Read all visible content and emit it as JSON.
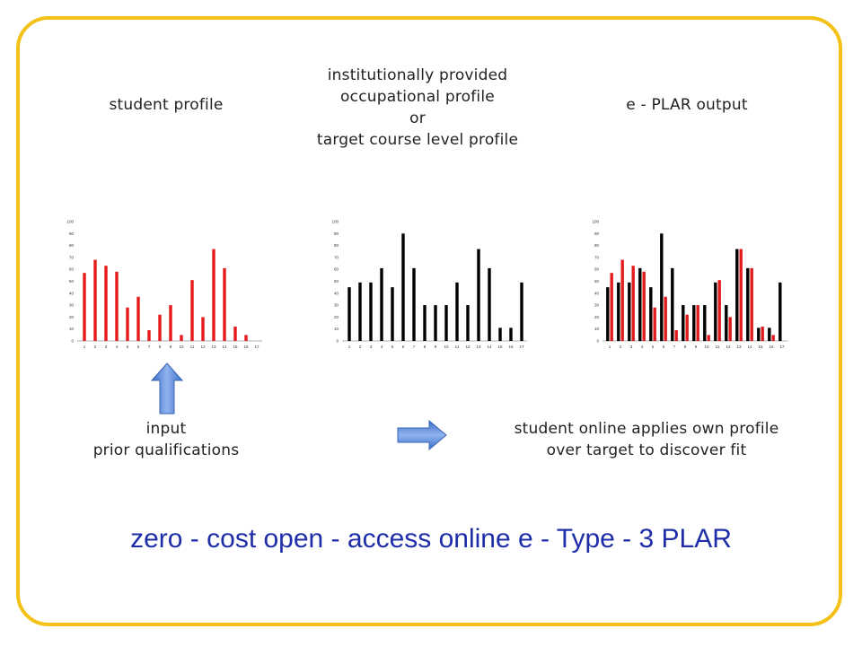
{
  "labels": {
    "student_profile": "student  profile",
    "institutional": [
      "institutionally provided",
      "occupational profile",
      "or",
      "target course level profile"
    ],
    "eplar_output": "e - PLAR  output",
    "input": [
      "input",
      "prior qualifications"
    ],
    "applies": [
      "student online applies own profile",
      "over target to discover fit"
    ]
  },
  "title": "zero - cost   open - access   online   e - Type - 3   PLAR",
  "colors": {
    "student": "#e51b1b",
    "target": "#000000",
    "frame": "#f3c117",
    "title": "#1f2ea8",
    "arrow": "#4a7fd6"
  },
  "icons": {
    "up_arrow": "up-arrow-icon",
    "right_arrow": "right-arrow-icon"
  },
  "chart_data": [
    {
      "type": "bar",
      "name": "student-profile-chart",
      "categories": [
        "1",
        "2",
        "3",
        "4",
        "5",
        "6",
        "7",
        "8",
        "9",
        "10",
        "11",
        "12",
        "13",
        "14",
        "15",
        "16",
        "17"
      ],
      "ylim": [
        0,
        100
      ],
      "yticks": [
        "0",
        "10",
        "20",
        "30",
        "40",
        "50",
        "60",
        "70",
        "80",
        "90",
        "100"
      ],
      "series": [
        {
          "color": "#e51b1b",
          "values": [
            57,
            68,
            63,
            58,
            28,
            37,
            9,
            22,
            30,
            5,
            51,
            20,
            77,
            61,
            12,
            5,
            null
          ]
        }
      ]
    },
    {
      "type": "bar",
      "name": "target-profile-chart",
      "categories": [
        "1",
        "2",
        "3",
        "4",
        "5",
        "6",
        "7",
        "8",
        "9",
        "10",
        "11",
        "12",
        "13",
        "14",
        "15",
        "16",
        "17"
      ],
      "ylim": [
        0,
        100
      ],
      "yticks": [
        "0",
        "10",
        "20",
        "30",
        "40",
        "50",
        "60",
        "70",
        "80",
        "90",
        "100"
      ],
      "series": [
        {
          "color": "#000000",
          "values": [
            45,
            49,
            49,
            61,
            45,
            90,
            61,
            30,
            30,
            30,
            49,
            30,
            77,
            61,
            11,
            11,
            49
          ]
        }
      ]
    },
    {
      "type": "bar",
      "name": "eplar-output-chart",
      "categories": [
        "1",
        "2",
        "3",
        "4",
        "5",
        "6",
        "7",
        "8",
        "9",
        "10",
        "11",
        "12",
        "13",
        "14",
        "15",
        "16",
        "17"
      ],
      "ylim": [
        0,
        100
      ],
      "yticks": [
        "0",
        "10",
        "20",
        "30",
        "40",
        "50",
        "60",
        "70",
        "80",
        "90",
        "100"
      ],
      "series": [
        {
          "color": "#000000",
          "values": [
            45,
            49,
            49,
            61,
            45,
            90,
            61,
            30,
            30,
            30,
            49,
            30,
            77,
            61,
            11,
            11,
            49
          ]
        },
        {
          "color": "#e51b1b",
          "values": [
            57,
            68,
            63,
            58,
            28,
            37,
            9,
            22,
            30,
            5,
            51,
            20,
            77,
            61,
            12,
            5,
            null
          ]
        }
      ]
    }
  ]
}
